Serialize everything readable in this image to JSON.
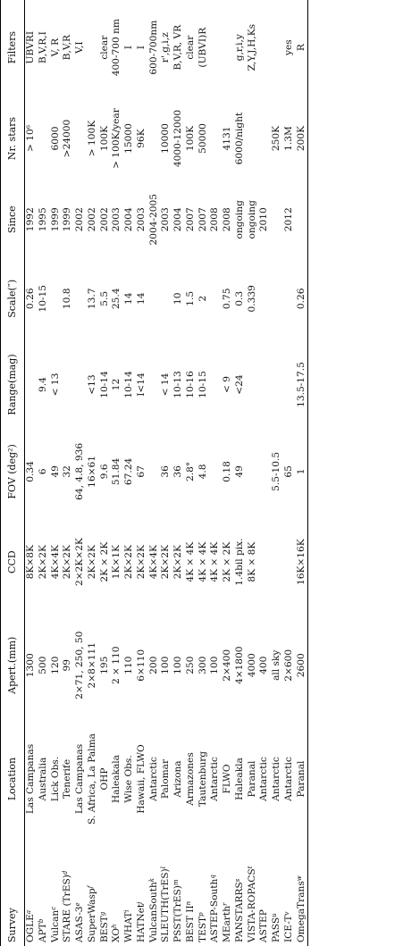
{
  "table": {
    "headers": [
      "Survey",
      "Location",
      "Apert.(mm)",
      "CCD",
      "FOV (deg²)",
      "Range(mag)",
      "Scale(″)",
      "Since",
      "Nr. stars",
      "Filters"
    ],
    "rows": [
      {
        "survey": "OGLE",
        "sup": "a",
        "location": "Las Campanas",
        "apert": "1300",
        "ccd": "8K×8K",
        "fov": "0.34",
        "range": "",
        "scale": "0.26",
        "since": "1992",
        "stars": "> 10⁶",
        "filters": "UBVRI"
      },
      {
        "survey": "APT",
        "sup": "b",
        "location": "Australia",
        "apert": "500",
        "ccd": "2K×2K",
        "fov": "6",
        "range": "9.4",
        "scale": "10-15",
        "since": "1995",
        "stars": "",
        "filters": "B,V,R,I"
      },
      {
        "survey": "Vulcan",
        "sup": "c",
        "location": "Lick Obs.",
        "apert": "120",
        "ccd": "4K×4K",
        "fov": "49",
        "range": "< 13",
        "scale": "",
        "since": "1999",
        "stars": "6000",
        "filters": "V, R"
      },
      {
        "survey": "STARE (TrES)",
        "sup": "d",
        "location": "Tenerife",
        "apert": "99",
        "ccd": "2K×2K",
        "fov": "32",
        "range": "",
        "scale": "10.8",
        "since": "1999",
        "stars": ">24000",
        "filters": "B,V,R"
      },
      {
        "survey": "ASAS-3",
        "sup": "e",
        "location": "Las Campanas",
        "apert": "2×71, 250, 50",
        "ccd": "2×2K×2K",
        "fov": "64, 4.8, 936",
        "range": "",
        "scale": "",
        "since": "2002",
        "stars": "",
        "filters": "V,I"
      },
      {
        "survey": "SuperWasp",
        "sup": "f",
        "location": "S. Africa, La Palma",
        "apert": "2×8×111",
        "ccd": "2K×2K",
        "fov": "16×61",
        "range": "<13",
        "scale": "13.7",
        "since": "2002",
        "stars": "> 100K",
        "filters": ""
      },
      {
        "survey": "BEST",
        "sup": "g",
        "location": "OHP",
        "apert": "195",
        "ccd": "2K × 2K",
        "fov": "9.6",
        "range": "10-14",
        "scale": "5.5",
        "since": "2002",
        "stars": "100K",
        "filters": "clear"
      },
      {
        "survey": "XO",
        "sup": "h",
        "location": "Haleakala",
        "apert": "2 × 110",
        "ccd": "1K×1K",
        "fov": "51.84",
        "range": "12",
        "scale": "25.4",
        "since": "2003",
        "stars": "> 100K/year",
        "filters": "400-700 nm"
      },
      {
        "survey": "WHAT",
        "sup": "i",
        "location": "Wise Obs.",
        "apert": "110",
        "ccd": "2K×2K",
        "fov": "67.24",
        "range": "10-14",
        "scale": "14",
        "since": "2004",
        "stars": "15000",
        "filters": "I"
      },
      {
        "survey": "HATNet",
        "sup": "j",
        "location": "Hawaii, FLWO",
        "apert": "6×110",
        "ccd": "2K×2K",
        "fov": "67",
        "range": "I<14",
        "scale": "14",
        "since": "2003",
        "stars": "96K",
        "filters": "I"
      },
      {
        "survey": "VulcanSouth",
        "sup": "k",
        "location": "Antarctic",
        "apert": "200",
        "ccd": "4K×4K",
        "fov": "",
        "range": "",
        "scale": "",
        "since": "2004-2005",
        "stars": "",
        "filters": "600-700nm"
      },
      {
        "survey": "SLEUTH(TrES)",
        "sup": "l",
        "location": "Palomar",
        "apert": "100",
        "ccd": "2K×2K",
        "fov": "36",
        "range": "< 14",
        "scale": "",
        "since": "2003",
        "stars": "10000",
        "filters": "r',g,i,z"
      },
      {
        "survey": "PSST(TrES)",
        "sup": "m",
        "location": "Arizona",
        "apert": "100",
        "ccd": "2K×2K",
        "fov": "36",
        "range": "10-13",
        "scale": "10",
        "since": "2004",
        "stars": "4000-12000",
        "filters": "B,V,R, VR"
      },
      {
        "survey": "BEST II",
        "sup": "n",
        "location": "Armazones",
        "apert": "250",
        "ccd": "4K × 4K",
        "fov": "2.8°",
        "range": "10-16",
        "scale": "1.5",
        "since": "2007",
        "stars": "100K",
        "filters": "clear"
      },
      {
        "survey": "TEST",
        "sup": "p",
        "location": "Tautenburg",
        "apert": "300",
        "ccd": "4K × 4K",
        "fov": "4.8",
        "range": "10-15",
        "scale": "2",
        "since": "2007",
        "stars": "50000",
        "filters": "(UBVI)R"
      },
      {
        "survey": "ASTEP-South",
        "sup": "q",
        "location": "Antarctic",
        "apert": "100",
        "ccd": "4K × 4K",
        "fov": "",
        "range": "",
        "scale": "",
        "since": "2008",
        "stars": "",
        "filters": ""
      },
      {
        "survey": "MEarth",
        "sup": "r",
        "location": "FLWO",
        "apert": "2×400",
        "ccd": "2K × 2K",
        "fov": "0.18",
        "range": "< 9",
        "scale": "0.75",
        "since": "2008",
        "stars": "4131",
        "filters": ""
      },
      {
        "survey": "PANSTARRS",
        "sup": "s",
        "location": "Haleakla",
        "apert": "4×1800",
        "ccd": "1.4bil pix.",
        "fov": "49",
        "range": "<24",
        "scale": "0.3",
        "since": "ongoing",
        "stars": "6000/night",
        "filters": "g,r,i,y"
      },
      {
        "survey": "VISTA-ROPACS",
        "sup": "t",
        "location": "Paranal",
        "apert": "4000",
        "ccd": "8K × 8K",
        "fov": "",
        "range": "",
        "scale": "0.339",
        "since": "ongoing",
        "stars": "",
        "filters": "Z,Y,J,H,Ks"
      },
      {
        "survey": "ASTEP",
        "sup": "",
        "location": "Antarctic",
        "apert": "400",
        "ccd": "",
        "fov": "",
        "range": "",
        "scale": "",
        "since": "2010",
        "stars": "",
        "filters": ""
      },
      {
        "survey": "PASS",
        "sup": "u",
        "location": "Antarctic",
        "apert": "all sky",
        "ccd": "",
        "fov": "5.5-10.5",
        "range": "",
        "scale": "",
        "since": "",
        "stars": "250K",
        "filters": ""
      },
      {
        "survey": "ICE-T",
        "sup": "v",
        "location": "Antarctic",
        "apert": "2×600",
        "ccd": "",
        "fov": "65",
        "range": "",
        "scale": "",
        "since": "2012",
        "stars": "1.3M",
        "filters": "yes"
      },
      {
        "survey": "OmegaTrans",
        "sup": "w",
        "location": "Paranal",
        "apert": "2600",
        "ccd": "16K×16K",
        "fov": "1",
        "range": "13.5-17.5",
        "scale": "0.26",
        "since": "",
        "stars": "200K",
        "filters": "R"
      }
    ]
  }
}
